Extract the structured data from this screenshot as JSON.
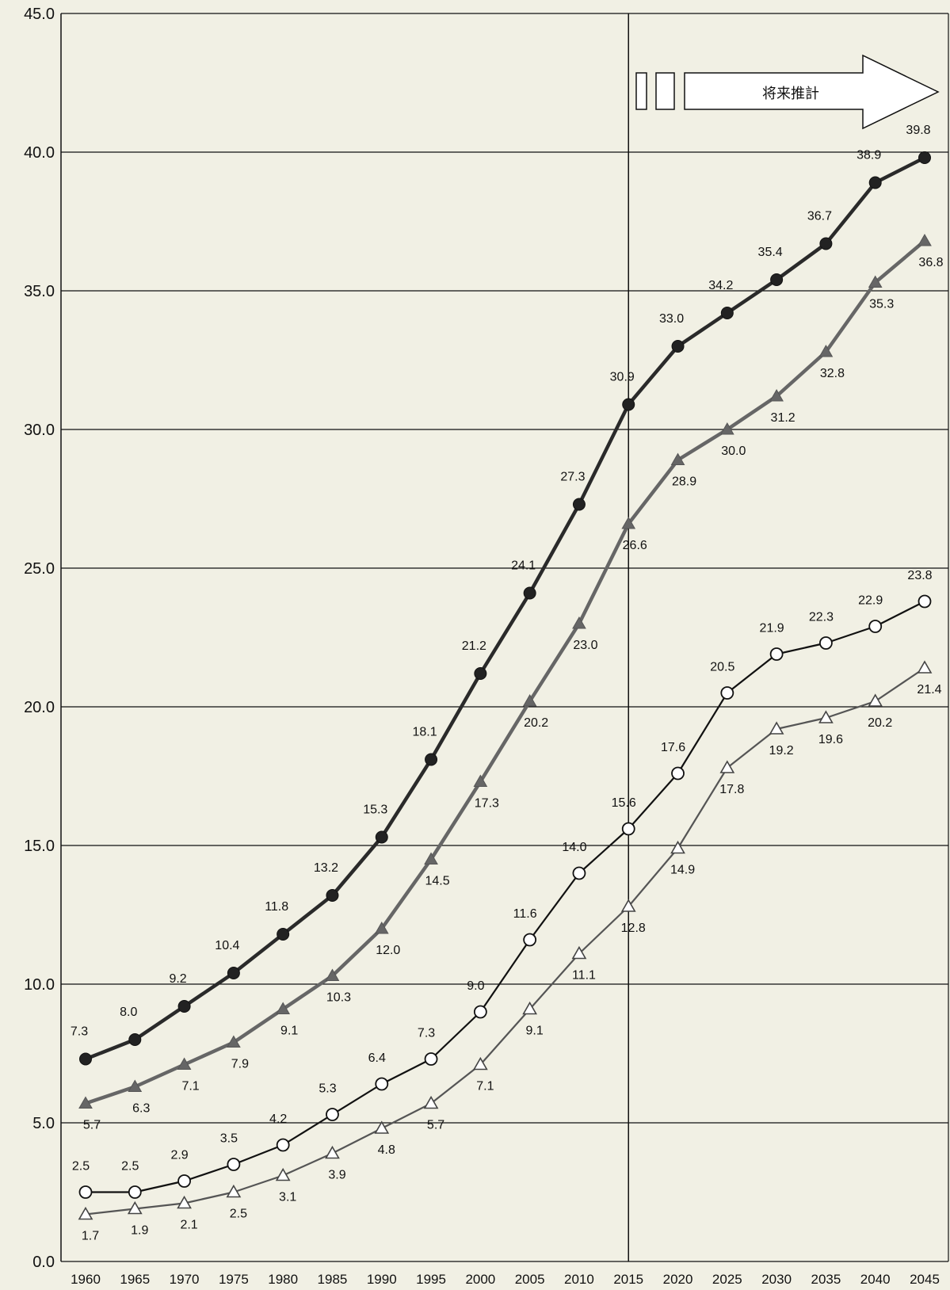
{
  "chart_data": {
    "type": "line",
    "x": [
      1960,
      1965,
      1970,
      1975,
      1980,
      1985,
      1990,
      1995,
      2000,
      2005,
      2010,
      2015,
      2020,
      2025,
      2030,
      2035,
      2040,
      2045
    ],
    "ylim": [
      0,
      45
    ],
    "yticks": [
      "0.0",
      "5.0",
      "10.0",
      "15.0",
      "20.0",
      "25.0",
      "30.0",
      "35.0",
      "40.0",
      "45.0"
    ],
    "grid": true,
    "projection_start": 2015,
    "projection_label": "将来推計",
    "series": [
      {
        "marker": "filled-circle",
        "color": "#2a2a2a",
        "values": [
          7.3,
          8.0,
          9.2,
          10.4,
          11.8,
          13.2,
          15.3,
          18.1,
          21.2,
          24.1,
          27.3,
          30.9,
          33.0,
          34.2,
          35.4,
          36.7,
          38.9,
          39.8
        ],
        "labels": [
          "7.3",
          "8.0",
          "9.2",
          "10.4",
          "11.8",
          "13.2",
          "15.3",
          "18.1",
          "21.2",
          "24.1",
          "27.3",
          "30.9",
          "33.0",
          "34.2",
          "35.4",
          "36.7",
          "38.9",
          "39.8"
        ]
      },
      {
        "marker": "filled-triangle",
        "color": "#666666",
        "values": [
          5.7,
          6.3,
          7.1,
          7.9,
          9.1,
          10.3,
          12.0,
          14.5,
          17.3,
          20.2,
          23.0,
          26.6,
          28.9,
          30.0,
          31.2,
          32.8,
          35.3,
          36.8
        ],
        "labels": [
          "5.7",
          "6.3",
          "7.1",
          "7.9",
          "9.1",
          "10.3",
          "12.0",
          "14.5",
          "17.3",
          "20.2",
          "23.0",
          "26.6",
          "28.9",
          "30.0",
          "31.2",
          "32.8",
          "35.3",
          "36.8"
        ]
      },
      {
        "marker": "open-circle",
        "color": "#111111",
        "values": [
          2.5,
          2.5,
          2.9,
          3.5,
          4.2,
          5.3,
          6.4,
          7.3,
          9.0,
          11.6,
          14.0,
          15.6,
          17.6,
          20.5,
          21.9,
          22.3,
          22.9,
          23.8
        ],
        "labels": [
          "2.5",
          "2.5",
          "2.9",
          "3.5",
          "4.2",
          "5.3",
          "6.4",
          "7.3",
          "9.0",
          "11.6",
          "14.0",
          "15.6",
          "17.6",
          "20.5",
          "21.9",
          "22.3",
          "22.9",
          "23.8"
        ]
      },
      {
        "marker": "open-triangle",
        "color": "#555555",
        "values": [
          1.7,
          1.9,
          2.1,
          2.5,
          3.1,
          3.9,
          4.8,
          5.7,
          7.1,
          9.1,
          11.1,
          12.8,
          14.9,
          17.8,
          19.2,
          19.6,
          20.2,
          21.4
        ],
        "labels": [
          "1.7",
          "1.9",
          "2.1",
          "2.5",
          "3.1",
          "3.9",
          "4.8",
          "5.7",
          "7.1",
          "9.1",
          "11.1",
          "12.8",
          "14.9",
          "17.8",
          "19.2",
          "19.6",
          "20.2",
          "21.4"
        ]
      }
    ]
  }
}
